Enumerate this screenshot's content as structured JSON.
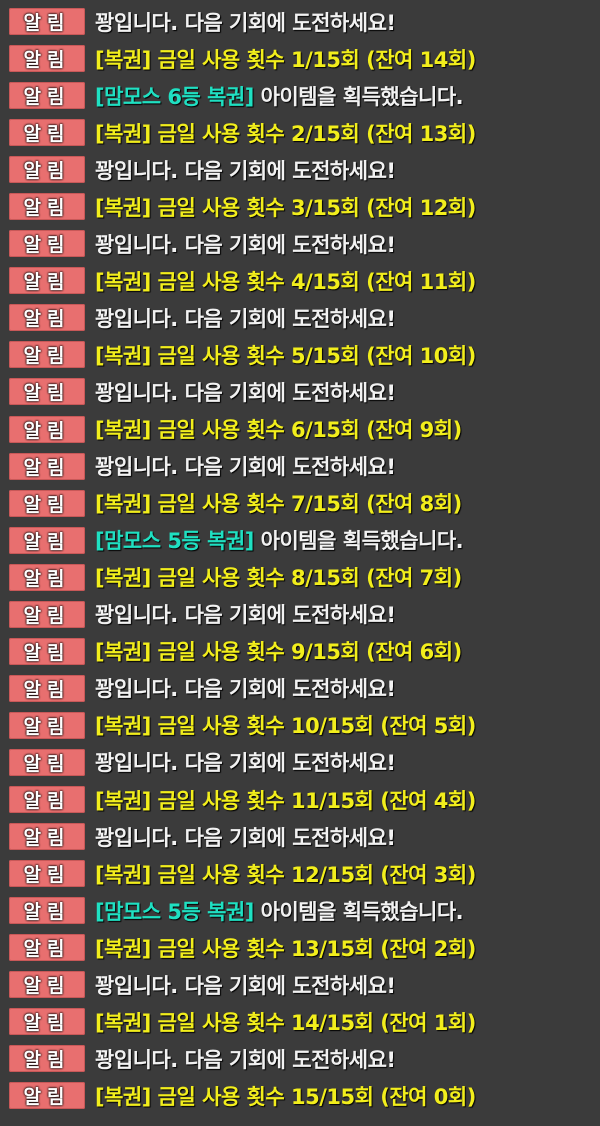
{
  "badge_label": "알림",
  "colors": {
    "badge": "#e86f6f",
    "system": "#f2f2f2",
    "ticket": "#f2ee1c",
    "item": "#1fe0c2",
    "background": "#3b3b3b"
  },
  "messages": [
    {
      "type": "white",
      "text": "꽝입니다. 다음 기회에 도전하세요!"
    },
    {
      "type": "yellow",
      "text": "[복권] 금일 사용 횟수 1/15회 (잔여 14회)"
    },
    {
      "type": "item",
      "item": "[맘모스 6등 복권]",
      "text": " 아이템을 획득했습니다."
    },
    {
      "type": "yellow",
      "text": "[복권] 금일 사용 횟수 2/15회 (잔여 13회)"
    },
    {
      "type": "white",
      "text": "꽝입니다. 다음 기회에 도전하세요!"
    },
    {
      "type": "yellow",
      "text": "[복권] 금일 사용 횟수 3/15회 (잔여 12회)"
    },
    {
      "type": "white",
      "text": "꽝입니다. 다음 기회에 도전하세요!"
    },
    {
      "type": "yellow",
      "text": "[복권] 금일 사용 횟수 4/15회 (잔여 11회)"
    },
    {
      "type": "white",
      "text": "꽝입니다. 다음 기회에 도전하세요!"
    },
    {
      "type": "yellow",
      "text": "[복권] 금일 사용 횟수 5/15회 (잔여 10회)"
    },
    {
      "type": "white",
      "text": "꽝입니다. 다음 기회에 도전하세요!"
    },
    {
      "type": "yellow",
      "text": "[복권] 금일 사용 횟수 6/15회 (잔여 9회)"
    },
    {
      "type": "white",
      "text": "꽝입니다. 다음 기회에 도전하세요!"
    },
    {
      "type": "yellow",
      "text": "[복권] 금일 사용 횟수 7/15회 (잔여 8회)"
    },
    {
      "type": "item",
      "item": "[맘모스 5등 복권]",
      "text": " 아이템을 획득했습니다."
    },
    {
      "type": "yellow",
      "text": "[복권] 금일 사용 횟수 8/15회 (잔여 7회)"
    },
    {
      "type": "white",
      "text": "꽝입니다. 다음 기회에 도전하세요!"
    },
    {
      "type": "yellow",
      "text": "[복권] 금일 사용 횟수 9/15회 (잔여 6회)"
    },
    {
      "type": "white",
      "text": "꽝입니다. 다음 기회에 도전하세요!"
    },
    {
      "type": "yellow",
      "text": "[복권] 금일 사용 횟수 10/15회 (잔여 5회)"
    },
    {
      "type": "white",
      "text": "꽝입니다. 다음 기회에 도전하세요!"
    },
    {
      "type": "yellow",
      "text": "[복권] 금일 사용 횟수 11/15회 (잔여 4회)"
    },
    {
      "type": "white",
      "text": "꽝입니다. 다음 기회에 도전하세요!"
    },
    {
      "type": "yellow",
      "text": "[복권] 금일 사용 횟수 12/15회 (잔여 3회)"
    },
    {
      "type": "item",
      "item": "[맘모스 5등 복권]",
      "text": " 아이템을 획득했습니다."
    },
    {
      "type": "yellow",
      "text": "[복권] 금일 사용 횟수 13/15회 (잔여 2회)"
    },
    {
      "type": "white",
      "text": "꽝입니다. 다음 기회에 도전하세요!"
    },
    {
      "type": "yellow",
      "text": "[복권] 금일 사용 횟수 14/15회 (잔여 1회)"
    },
    {
      "type": "white",
      "text": "꽝입니다. 다음 기회에 도전하세요!"
    },
    {
      "type": "yellow",
      "text": "[복권] 금일 사용 횟수 15/15회 (잔여 0회)"
    }
  ]
}
